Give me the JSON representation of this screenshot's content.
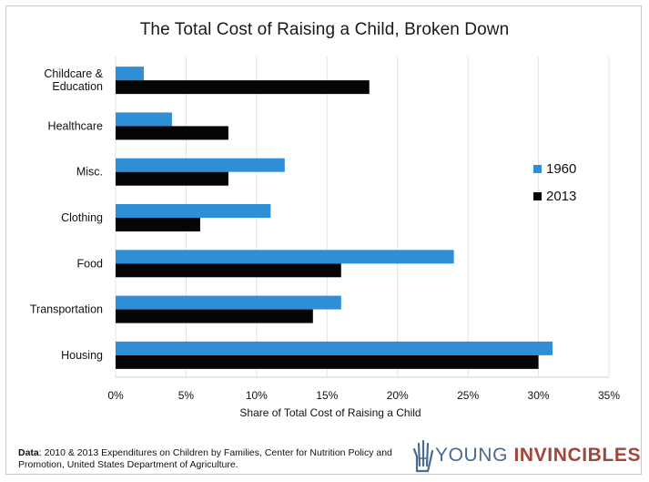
{
  "source": {
    "label": "Data",
    "text": ": 2010 & 2013 Expenditures on Children by Families, Center for Nutrition Policy and Promotion, United States Department of Agriculture."
  },
  "logo": {
    "word1": "YOUNG",
    "word2": "INVINCIBLES",
    "icon": "hand-icon"
  },
  "colors": {
    "series_1960": "#2f8fd6",
    "series_2013": "#050505",
    "grid": "#e3e3e3"
  },
  "chart_data": {
    "type": "bar",
    "orientation": "horizontal",
    "title": "The Total Cost of Raising a Child, Broken Down",
    "xlabel": "Share of Total Cost of Raising a Child",
    "ylabel": "",
    "xlim": [
      0,
      35
    ],
    "x_ticks": [
      "0%",
      "5%",
      "10%",
      "15%",
      "20%",
      "25%",
      "30%",
      "35%"
    ],
    "x_tick_values": [
      0,
      5,
      10,
      15,
      20,
      25,
      30,
      35
    ],
    "grid": true,
    "legend_position": "right",
    "categories": [
      [
        "Childcare &",
        "Education"
      ],
      [
        "Healthcare"
      ],
      [
        "Misc."
      ],
      [
        "Clothing"
      ],
      [
        "Food"
      ],
      [
        "Transportation"
      ],
      [
        "Housing"
      ]
    ],
    "series": [
      {
        "name": "1960",
        "values": [
          2,
          4,
          12,
          11,
          24,
          16,
          31
        ]
      },
      {
        "name": "2013",
        "values": [
          18,
          8,
          8,
          6,
          16,
          14,
          30
        ]
      }
    ]
  }
}
